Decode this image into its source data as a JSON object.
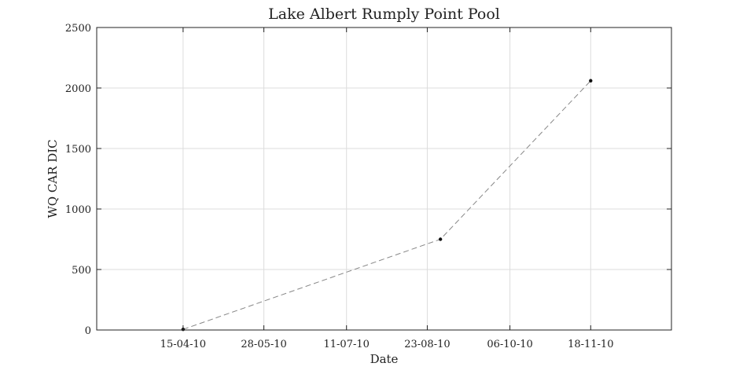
{
  "chart_data": {
    "type": "line",
    "title": "Lake Albert Rumply Point Pool",
    "xlabel": "Date",
    "ylabel": "WQ CAR DIC",
    "x_ticks": [
      "15-04-10",
      "28-05-10",
      "11-07-10",
      "23-08-10",
      "06-10-10",
      "18-11-10"
    ],
    "y_ticks": [
      "0",
      "500",
      "1000",
      "1500",
      "2000",
      "2500"
    ],
    "xlim": [
      "2010-02-28",
      "2010-12-31"
    ],
    "ylim": [
      0,
      2500
    ],
    "grid": true,
    "series": [
      {
        "color": "#888888",
        "line_style": "dashed",
        "marker_color": "#111111",
        "points": [
          {
            "x": "2010-04-15",
            "y": 5
          },
          {
            "x": "2010-08-30",
            "y": 750
          },
          {
            "x": "2010-11-18",
            "y": 2060
          }
        ]
      }
    ]
  }
}
